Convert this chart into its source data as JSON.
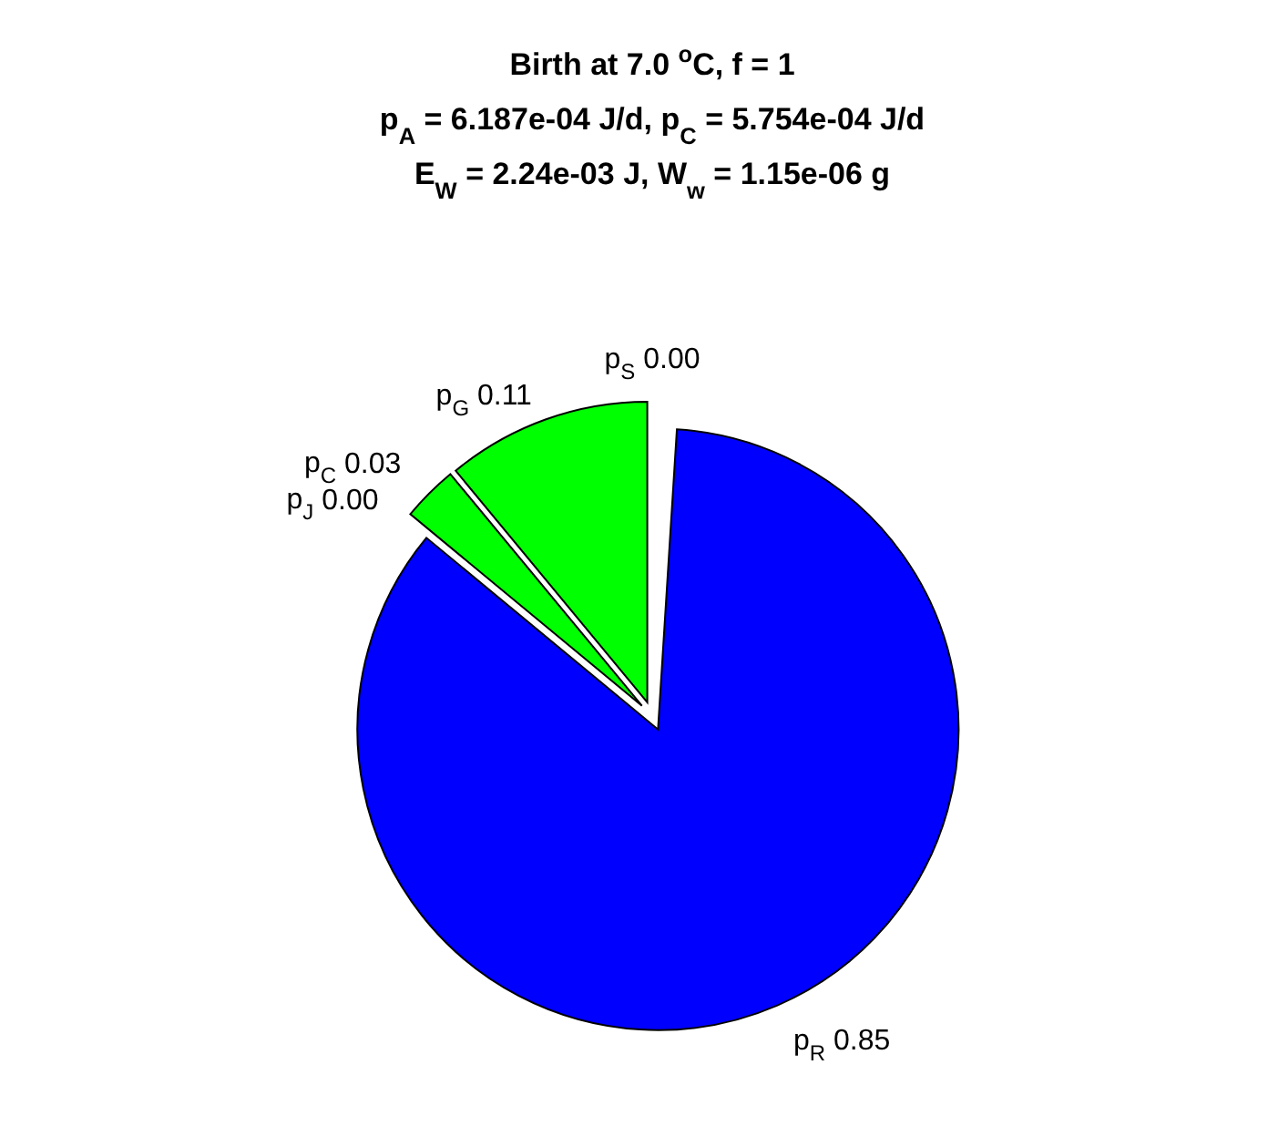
{
  "chart_data": {
    "type": "pie",
    "title": "Birth at 7.0 $^{o}$C, f = 1\np$_{A}$ = 6.187e-04 J/d, p$_{C}$ = 5.754e-04 J/d\nE$_{W}$ = 2.24e-03 J, W$_{w}$ = 1.15e-06 g",
    "categories": [
      "p$_{S}$",
      "p$_{G}$",
      "p$_{C}$",
      "p$_{J}$",
      "p$_{R}$"
    ],
    "values": [
      0,
      0.11,
      0.03,
      0,
      0.85
    ],
    "value_labels": [
      "0.00",
      "0.11",
      "0.03",
      "0.00",
      "0.85"
    ],
    "colors": [
      null,
      "#00ff00",
      "#00ff00",
      null,
      "#0000ff"
    ]
  }
}
